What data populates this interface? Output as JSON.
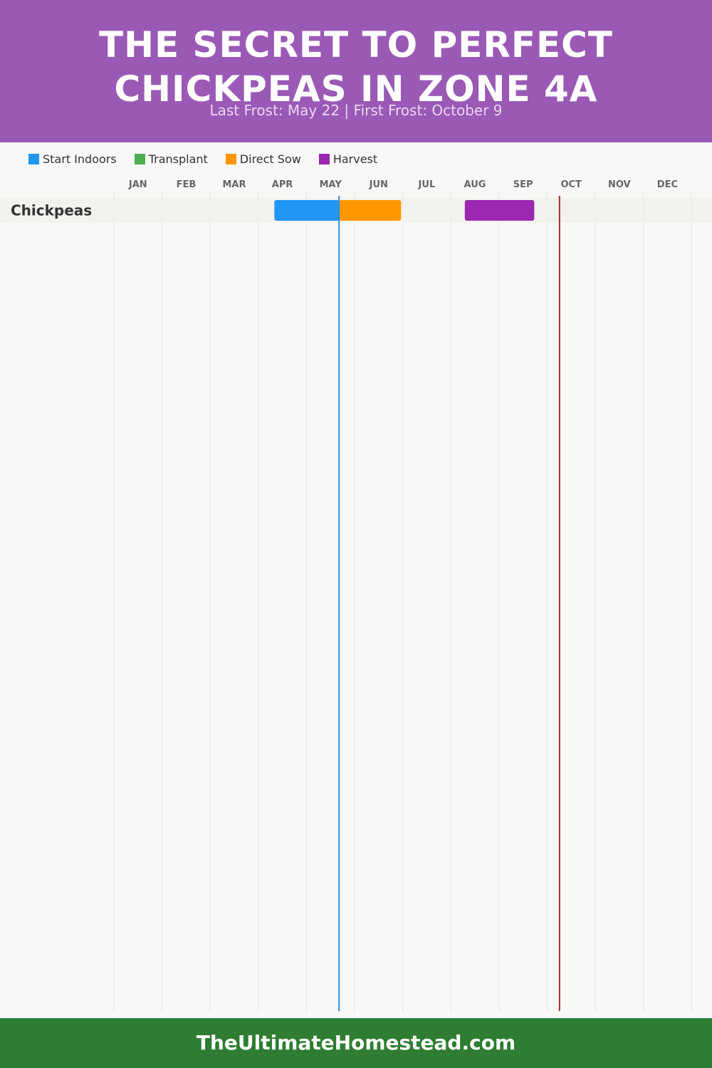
{
  "header": {
    "title_line1": "THE SECRET TO PERFECT",
    "title_line2": "CHICKPEAS IN ZONE 4A",
    "subtitle": "Last Frost: May 22 | First Frost: October 9",
    "color": "#9b59b6"
  },
  "legend": [
    {
      "label": "Start Indoors",
      "color": "#2196f3"
    },
    {
      "label": "Transplant",
      "color": "#4caf50"
    },
    {
      "label": "Direct Sow",
      "color": "#ff9800"
    },
    {
      "label": "Harvest",
      "color": "#9c27b0"
    }
  ],
  "chart_data": {
    "type": "gantt",
    "x_axis": {
      "tick_labels": [
        "JAN",
        "FEB",
        "MAR",
        "APR",
        "MAY",
        "JUN",
        "JUL",
        "AUG",
        "SEP",
        "OCT",
        "NOV",
        "DEC"
      ]
    },
    "rows": [
      {
        "label": "Chickpeas",
        "bars": [
          {
            "phase": "Start Indoors",
            "start": "Apr 11",
            "end": "May 22",
            "color": "#2196f3"
          },
          {
            "phase": "Direct Sow",
            "start": "May 22",
            "end": "Jun 30",
            "color": "#ff9800"
          },
          {
            "phase": "Harvest",
            "start": "Aug 10",
            "end": "Sep 23",
            "color": "#9c27b0"
          }
        ]
      }
    ],
    "markers": [
      {
        "name": "Last Frost",
        "date": "May 22",
        "color": "#2a8fd6"
      },
      {
        "name": "First Frost",
        "date": "Oct 9",
        "color": "#a52a2a"
      }
    ],
    "grid": true
  },
  "footer": {
    "text": "TheUltimateHomestead.com",
    "color": "#2e7d32"
  }
}
